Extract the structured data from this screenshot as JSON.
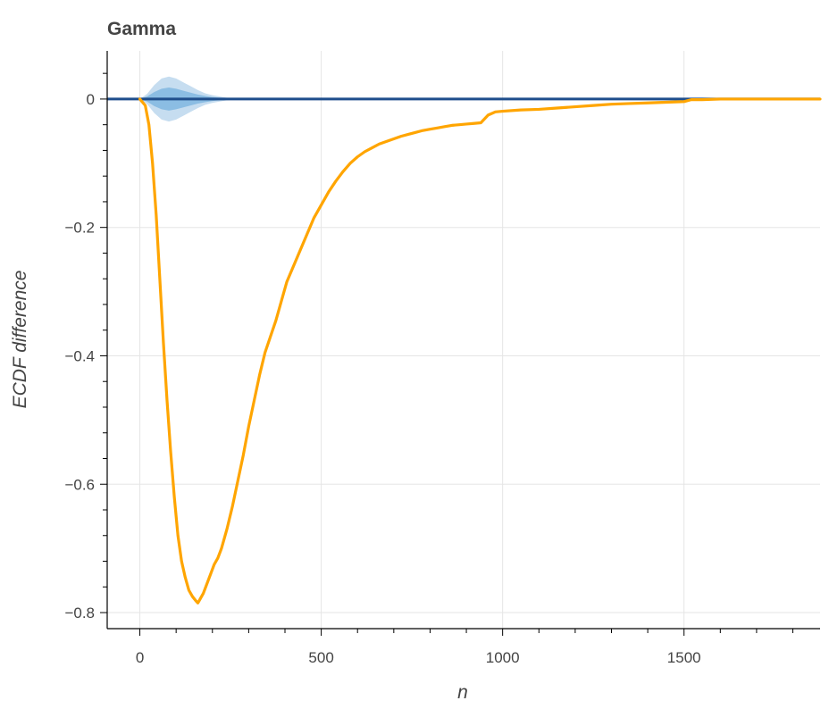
{
  "chart_data": {
    "type": "line",
    "title": "Gamma",
    "xlabel": "n",
    "ylabel": "ECDF difference",
    "xlim": [
      -90,
      1875
    ],
    "ylim": [
      -0.825,
      0.075
    ],
    "x_ticks": [
      0,
      500,
      1000,
      1500
    ],
    "x_tick_labels": [
      "0",
      "500",
      "1000",
      "1500"
    ],
    "y_ticks": [
      0,
      -0.2,
      -0.4,
      -0.6,
      -0.8
    ],
    "y_tick_labels": [
      "0",
      "−0.2",
      "−0.4",
      "−0.6",
      "−0.8"
    ],
    "grid": true,
    "colors": {
      "ecdf_line": "#ffa500",
      "zero_line": "#1f4e8c",
      "band_outer": "#c6ddf0",
      "band_inner": "#8bbde3"
    },
    "series": [
      {
        "x": [
          0,
          15,
          25,
          35,
          45,
          55,
          65,
          75,
          85,
          95,
          105,
          115,
          125,
          135,
          145,
          155,
          160,
          165,
          175,
          185,
          195,
          205,
          215,
          225,
          240,
          255,
          270,
          285,
          300,
          315,
          330,
          345,
          360,
          375,
          390,
          405,
          420,
          435,
          450,
          465,
          480,
          500,
          520,
          540,
          560,
          580,
          600,
          620,
          640,
          660,
          680,
          700,
          720,
          740,
          760,
          780,
          800,
          820,
          840,
          860,
          880,
          900,
          920,
          940,
          960,
          980,
          1000,
          1050,
          1100,
          1150,
          1200,
          1250,
          1300,
          1350,
          1400,
          1450,
          1500,
          1520,
          1550,
          1600,
          1650,
          1700,
          1750,
          1800,
          1875
        ],
        "y": [
          0,
          -0.01,
          -0.04,
          -0.1,
          -0.18,
          -0.28,
          -0.38,
          -0.47,
          -0.55,
          -0.62,
          -0.68,
          -0.72,
          -0.745,
          -0.765,
          -0.775,
          -0.782,
          -0.785,
          -0.78,
          -0.77,
          -0.755,
          -0.74,
          -0.725,
          -0.715,
          -0.7,
          -0.67,
          -0.635,
          -0.595,
          -0.555,
          -0.51,
          -0.47,
          -0.43,
          -0.395,
          -0.37,
          -0.345,
          -0.315,
          -0.285,
          -0.265,
          -0.245,
          -0.225,
          -0.205,
          -0.185,
          -0.165,
          -0.145,
          -0.128,
          -0.113,
          -0.1,
          -0.09,
          -0.082,
          -0.076,
          -0.07,
          -0.066,
          -0.062,
          -0.058,
          -0.055,
          -0.052,
          -0.049,
          -0.047,
          -0.045,
          -0.043,
          -0.041,
          -0.04,
          -0.039,
          -0.038,
          -0.037,
          -0.025,
          -0.02,
          -0.019,
          -0.017,
          -0.016,
          -0.014,
          -0.012,
          -0.01,
          -0.008,
          -0.007,
          -0.006,
          -0.005,
          -0.004,
          -0.001,
          -0.001,
          0,
          0,
          0,
          0,
          0,
          0
        ]
      }
    ],
    "reference_line": {
      "y": 0,
      "x": [
        -90,
        1875
      ]
    },
    "envelope_outer": {
      "x": [
        0,
        20,
        40,
        60,
        80,
        100,
        120,
        140,
        160,
        180,
        200,
        220,
        240,
        260,
        280,
        300
      ],
      "upper": [
        0,
        0.008,
        0.022,
        0.032,
        0.035,
        0.032,
        0.026,
        0.02,
        0.014,
        0.009,
        0.006,
        0.004,
        0.002,
        0.001,
        0.0005,
        0
      ],
      "lower": [
        0,
        -0.008,
        -0.022,
        -0.032,
        -0.035,
        -0.032,
        -0.026,
        -0.02,
        -0.014,
        -0.009,
        -0.006,
        -0.004,
        -0.002,
        -0.001,
        -0.0005,
        0
      ]
    },
    "envelope_inner": {
      "x": [
        0,
        20,
        40,
        60,
        80,
        100,
        120,
        140,
        160,
        180,
        200,
        220,
        240,
        260,
        280
      ],
      "upper": [
        0,
        0.004,
        0.011,
        0.016,
        0.018,
        0.016,
        0.013,
        0.01,
        0.007,
        0.005,
        0.003,
        0.002,
        0.001,
        0.0005,
        0
      ],
      "lower": [
        0,
        -0.004,
        -0.011,
        -0.016,
        -0.018,
        -0.016,
        -0.013,
        -0.01,
        -0.007,
        -0.005,
        -0.003,
        -0.002,
        -0.001,
        -0.0005,
        0
      ]
    }
  }
}
